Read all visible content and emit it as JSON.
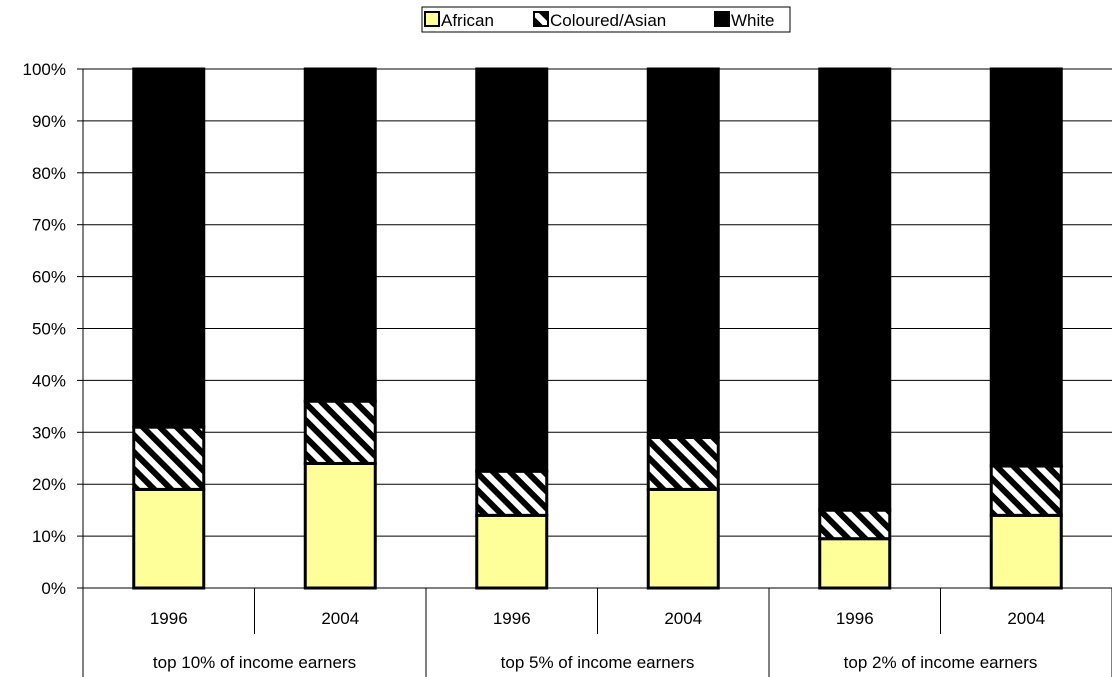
{
  "chart_data": {
    "type": "bar",
    "stacked": true,
    "percent_stacked": true,
    "groups": [
      {
        "label": "top 10% of income earners",
        "categories": [
          "1996",
          "2004"
        ]
      },
      {
        "label": "top 5% of income earners",
        "categories": [
          "1996",
          "2004"
        ]
      },
      {
        "label": "top 2% of income earners",
        "categories": [
          "1996",
          "2004"
        ]
      }
    ],
    "categories": [
      "1996",
      "2004",
      "1996",
      "2004",
      "1996",
      "2004"
    ],
    "series": [
      {
        "name": "African",
        "values": [
          19,
          24,
          14,
          19,
          9.5,
          14
        ],
        "color": "#ffff99",
        "pattern": "solid"
      },
      {
        "name": "Coloured/Asian",
        "values": [
          12,
          12,
          8.5,
          10,
          5.5,
          9.5
        ],
        "color": "#000000",
        "pattern": "diagonal-hatch"
      },
      {
        "name": "White",
        "values": [
          69,
          64,
          77.5,
          71,
          85,
          76.5
        ],
        "color": "#000000",
        "pattern": "solid"
      }
    ],
    "ylim": [
      0,
      100
    ],
    "yticks": [
      "0%",
      "10%",
      "20%",
      "30%",
      "40%",
      "50%",
      "60%",
      "70%",
      "80%",
      "90%",
      "100%"
    ],
    "grid": true,
    "legend_position": "top"
  }
}
